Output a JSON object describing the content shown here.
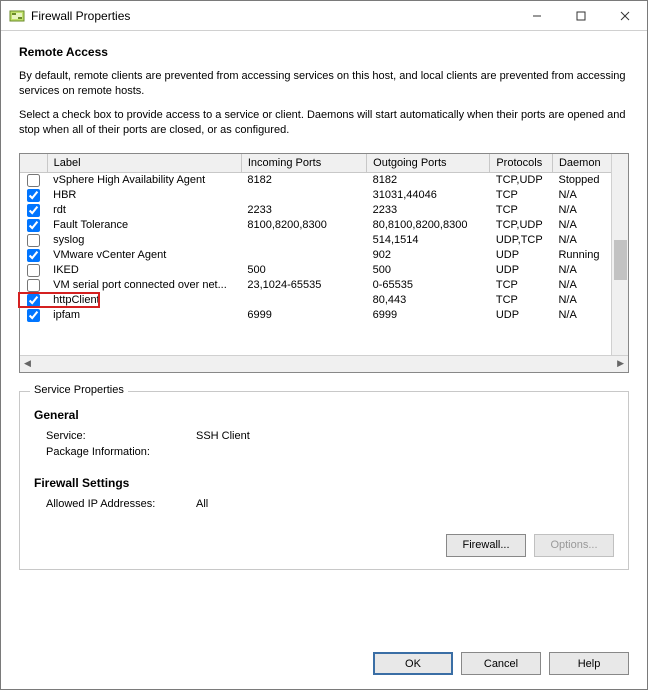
{
  "window": {
    "title": "Firewall Properties"
  },
  "remote_access": {
    "title": "Remote Access",
    "desc1": "By default, remote clients are prevented from accessing services on this host, and local clients are prevented from accessing services on remote hosts.",
    "desc2": "Select a check box to provide access to a service or client. Daemons will start automatically when their ports are opened and stop when all of their ports are closed, or as configured."
  },
  "table": {
    "columns": {
      "label": "Label",
      "incoming": "Incoming Ports",
      "outgoing": "Outgoing Ports",
      "protocols": "Protocols",
      "daemon": "Daemon"
    },
    "rows": [
      {
        "checked": false,
        "label": "vSphere High Availability Agent",
        "incoming": "8182",
        "outgoing": "8182",
        "protocols": "TCP,UDP",
        "daemon": "Stopped"
      },
      {
        "checked": true,
        "label": "HBR",
        "incoming": "",
        "outgoing": "31031,44046",
        "protocols": "TCP",
        "daemon": "N/A"
      },
      {
        "checked": true,
        "label": "rdt",
        "incoming": "2233",
        "outgoing": "2233",
        "protocols": "TCP",
        "daemon": "N/A"
      },
      {
        "checked": true,
        "label": "Fault Tolerance",
        "incoming": "8100,8200,8300",
        "outgoing": "80,8100,8200,8300",
        "protocols": "TCP,UDP",
        "daemon": "N/A"
      },
      {
        "checked": false,
        "label": "syslog",
        "incoming": "",
        "outgoing": "514,1514",
        "protocols": "UDP,TCP",
        "daemon": "N/A"
      },
      {
        "checked": true,
        "label": "VMware vCenter Agent",
        "incoming": "",
        "outgoing": "902",
        "protocols": "UDP",
        "daemon": "Running"
      },
      {
        "checked": false,
        "label": "IKED",
        "incoming": "500",
        "outgoing": "500",
        "protocols": "UDP",
        "daemon": "N/A"
      },
      {
        "checked": false,
        "label": "VM serial port connected over net...",
        "incoming": "23,1024-65535",
        "outgoing": "0-65535",
        "protocols": "TCP",
        "daemon": "N/A"
      },
      {
        "checked": true,
        "label": "httpClient",
        "incoming": "",
        "outgoing": "80,443",
        "protocols": "TCP",
        "daemon": "N/A",
        "highlight": true
      },
      {
        "checked": true,
        "label": "ipfam",
        "incoming": "6999",
        "outgoing": "6999",
        "protocols": "UDP",
        "daemon": "N/A"
      }
    ]
  },
  "service_properties": {
    "groupbox_label": "Service Properties",
    "general_heading": "General",
    "service_label": "Service:",
    "service_value": "SSH Client",
    "package_label": "Package Information:",
    "package_value": "",
    "firewall_heading": "Firewall Settings",
    "allowed_ip_label": "Allowed IP Addresses:",
    "allowed_ip_value": "All",
    "firewall_button": "Firewall...",
    "options_button": "Options..."
  },
  "footer": {
    "ok": "OK",
    "cancel": "Cancel",
    "help": "Help"
  },
  "colors": {
    "highlight_border": "#d42020",
    "window_border": "#7a7a7a"
  }
}
